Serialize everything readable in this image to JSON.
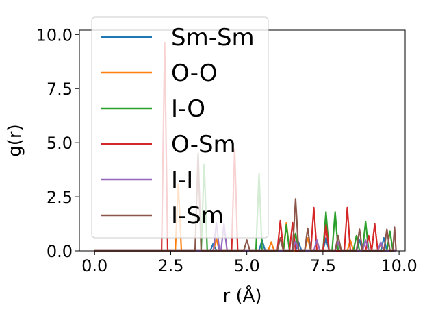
{
  "chart_data": {
    "type": "line",
    "title": "",
    "xlabel": "r (Å)",
    "ylabel": "g(r)",
    "xlim": [
      -0.5,
      10.2
    ],
    "ylim": [
      0,
      10.2
    ],
    "xticks": [
      0.0,
      2.5,
      5.0,
      7.5,
      10.0
    ],
    "xtick_labels": [
      "0.0",
      "2.5",
      "5.0",
      "7.5",
      "10.0"
    ],
    "yticks": [
      0.0,
      2.5,
      5.0,
      7.5,
      10.0
    ],
    "ytick_labels": [
      "0.0",
      "2.5",
      "5.0",
      "7.5",
      "10.0"
    ],
    "grid": false,
    "legend_position": "top-left",
    "series": [
      {
        "name": "Sm-Sm",
        "color": "#1f77b4",
        "points": [
          [
            0.0,
            0
          ],
          [
            3.8,
            0
          ],
          [
            3.9,
            0.35
          ],
          [
            4.0,
            0
          ],
          [
            5.4,
            0
          ],
          [
            5.5,
            0.5
          ],
          [
            5.6,
            0
          ],
          [
            6.6,
            0
          ],
          [
            6.7,
            0.4
          ],
          [
            6.8,
            0
          ],
          [
            7.5,
            0
          ],
          [
            7.6,
            0.6
          ],
          [
            7.7,
            0
          ],
          [
            8.6,
            0
          ],
          [
            8.7,
            0.5
          ],
          [
            8.8,
            0
          ],
          [
            9.4,
            0
          ],
          [
            9.5,
            0.6
          ],
          [
            9.6,
            0
          ],
          [
            9.9,
            0
          ]
        ]
      },
      {
        "name": "O-O",
        "color": "#ff7f0e",
        "points": [
          [
            0.0,
            0
          ],
          [
            2.65,
            0
          ],
          [
            2.75,
            3.1
          ],
          [
            2.85,
            0
          ],
          [
            3.9,
            0
          ],
          [
            4.0,
            0.55
          ],
          [
            4.1,
            0
          ],
          [
            5.7,
            0
          ],
          [
            5.8,
            0.4
          ],
          [
            5.9,
            0
          ],
          [
            6.2,
            0
          ],
          [
            6.3,
            1.3
          ],
          [
            6.4,
            0
          ],
          [
            6.9,
            0
          ],
          [
            7.0,
            0.6
          ],
          [
            7.1,
            0
          ],
          [
            8.3,
            0
          ],
          [
            8.4,
            0.5
          ],
          [
            8.5,
            0
          ],
          [
            9.3,
            0
          ],
          [
            9.4,
            0.35
          ],
          [
            9.5,
            0
          ],
          [
            9.9,
            0
          ]
        ]
      },
      {
        "name": "I-O",
        "color": "#2ca02c",
        "points": [
          [
            0.0,
            0
          ],
          [
            3.5,
            0
          ],
          [
            3.6,
            4.0
          ],
          [
            3.7,
            0
          ],
          [
            5.3,
            0
          ],
          [
            5.4,
            3.55
          ],
          [
            5.5,
            0
          ],
          [
            6.2,
            0
          ],
          [
            6.3,
            1.2
          ],
          [
            6.4,
            0
          ],
          [
            6.5,
            0
          ],
          [
            6.6,
            0.8
          ],
          [
            6.7,
            0
          ],
          [
            7.5,
            0
          ],
          [
            7.6,
            1.8
          ],
          [
            7.7,
            0
          ],
          [
            7.8,
            0
          ],
          [
            7.9,
            1.8
          ],
          [
            8.0,
            0
          ],
          [
            8.5,
            0
          ],
          [
            8.6,
            0.7
          ],
          [
            8.7,
            0
          ],
          [
            8.8,
            0
          ],
          [
            8.9,
            1.35
          ],
          [
            9.0,
            0
          ],
          [
            9.6,
            0
          ],
          [
            9.7,
            0.9
          ],
          [
            9.8,
            0
          ],
          [
            9.9,
            0
          ]
        ]
      },
      {
        "name": "O-Sm",
        "color": "#d62728",
        "points": [
          [
            0.0,
            0
          ],
          [
            2.2,
            0
          ],
          [
            2.3,
            9.6
          ],
          [
            2.4,
            0
          ],
          [
            4.5,
            0
          ],
          [
            4.6,
            4.7
          ],
          [
            4.7,
            0
          ],
          [
            6.0,
            0
          ],
          [
            6.1,
            1.4
          ],
          [
            6.2,
            0
          ],
          [
            6.4,
            0
          ],
          [
            6.5,
            1.3
          ],
          [
            6.6,
            0
          ],
          [
            7.1,
            0
          ],
          [
            7.2,
            2.0
          ],
          [
            7.3,
            0
          ],
          [
            7.5,
            0
          ],
          [
            7.6,
            1.2
          ],
          [
            7.7,
            0
          ],
          [
            8.2,
            0
          ],
          [
            8.3,
            2.0
          ],
          [
            8.4,
            0
          ],
          [
            8.9,
            0
          ],
          [
            9.0,
            0.7
          ],
          [
            9.1,
            0
          ],
          [
            9.1,
            0
          ],
          [
            9.2,
            1.25
          ],
          [
            9.3,
            0
          ],
          [
            9.9,
            0
          ]
        ]
      },
      {
        "name": "I-I",
        "color": "#9467bd",
        "points": [
          [
            0.0,
            0
          ],
          [
            3.9,
            0
          ],
          [
            4.0,
            1.3
          ],
          [
            4.1,
            0
          ],
          [
            4.15,
            0
          ],
          [
            4.25,
            1.25
          ],
          [
            4.35,
            0
          ],
          [
            6.5,
            0
          ],
          [
            6.6,
            0.45
          ],
          [
            6.7,
            0
          ],
          [
            7.2,
            0
          ],
          [
            7.3,
            0.5
          ],
          [
            7.4,
            0
          ],
          [
            7.9,
            0
          ],
          [
            8.0,
            0.4
          ],
          [
            8.1,
            0
          ],
          [
            8.8,
            0
          ],
          [
            8.9,
            0.5
          ],
          [
            9.0,
            0
          ],
          [
            9.3,
            0
          ],
          [
            9.4,
            0.4
          ],
          [
            9.5,
            0
          ],
          [
            9.9,
            0
          ]
        ]
      },
      {
        "name": "I-Sm",
        "color": "#8c564b",
        "points": [
          [
            0.0,
            0
          ],
          [
            3.3,
            0
          ],
          [
            3.4,
            4.5
          ],
          [
            3.5,
            0
          ],
          [
            4.9,
            0
          ],
          [
            5.0,
            0.5
          ],
          [
            5.1,
            0
          ],
          [
            6.0,
            0
          ],
          [
            6.1,
            0.6
          ],
          [
            6.2,
            0
          ],
          [
            6.5,
            0
          ],
          [
            6.6,
            2.4
          ],
          [
            6.7,
            0
          ],
          [
            6.9,
            0
          ],
          [
            7.0,
            1.05
          ],
          [
            7.1,
            0
          ],
          [
            7.9,
            0
          ],
          [
            8.0,
            0.7
          ],
          [
            8.1,
            0
          ],
          [
            8.6,
            0
          ],
          [
            8.7,
            1.0
          ],
          [
            8.8,
            0
          ],
          [
            9.5,
            0
          ],
          [
            9.6,
            1.0
          ],
          [
            9.7,
            0
          ],
          [
            9.8,
            0
          ],
          [
            9.85,
            1.1
          ],
          [
            9.9,
            0
          ]
        ]
      }
    ]
  }
}
